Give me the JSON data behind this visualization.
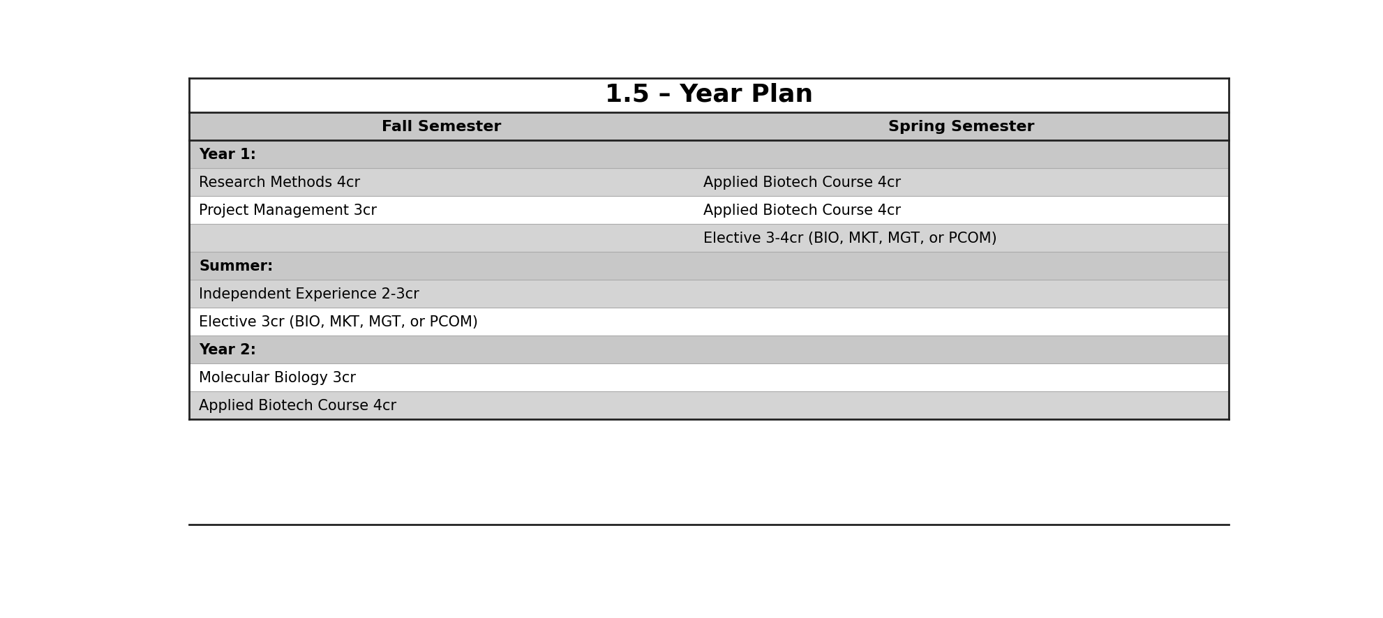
{
  "title": "1.5 – Year Plan",
  "title_fontsize": 26,
  "col_headers": [
    "Fall Semester",
    "Spring Semester"
  ],
  "header_fontsize": 16,
  "row_fontsize": 15,
  "col_split": 0.485,
  "background_color": "#ffffff",
  "header_bg": "#c8c8c8",
  "row_bg_shaded": "#d4d4d4",
  "row_bg_white": "#ffffff",
  "section_bg": "#c8c8c8",
  "outer_border_color": "#222222",
  "row_divider_color": "#aaaaaa",
  "rows": [
    {
      "type": "section",
      "left": "Year 1:",
      "right": ""
    },
    {
      "type": "shaded",
      "left": "Research Methods 4cr",
      "right": "Applied Biotech Course 4cr"
    },
    {
      "type": "white",
      "left": "Project Management 3cr",
      "right": "Applied Biotech Course 4cr"
    },
    {
      "type": "shaded",
      "left": "",
      "right": "Elective 3-4cr (BIO, MKT, MGT, or PCOM)"
    },
    {
      "type": "section",
      "left": "Summer:",
      "right": ""
    },
    {
      "type": "shaded",
      "left": "Independent Experience 2-3cr",
      "right": ""
    },
    {
      "type": "white",
      "left": "Elective 3cr (BIO, MKT, MGT, or PCOM)",
      "right": ""
    },
    {
      "type": "section",
      "left": "Year 2:",
      "right": ""
    },
    {
      "type": "white",
      "left": "Molecular Biology 3cr",
      "right": ""
    },
    {
      "type": "shaded",
      "left": "Applied Biotech Course 4cr",
      "right": ""
    }
  ]
}
